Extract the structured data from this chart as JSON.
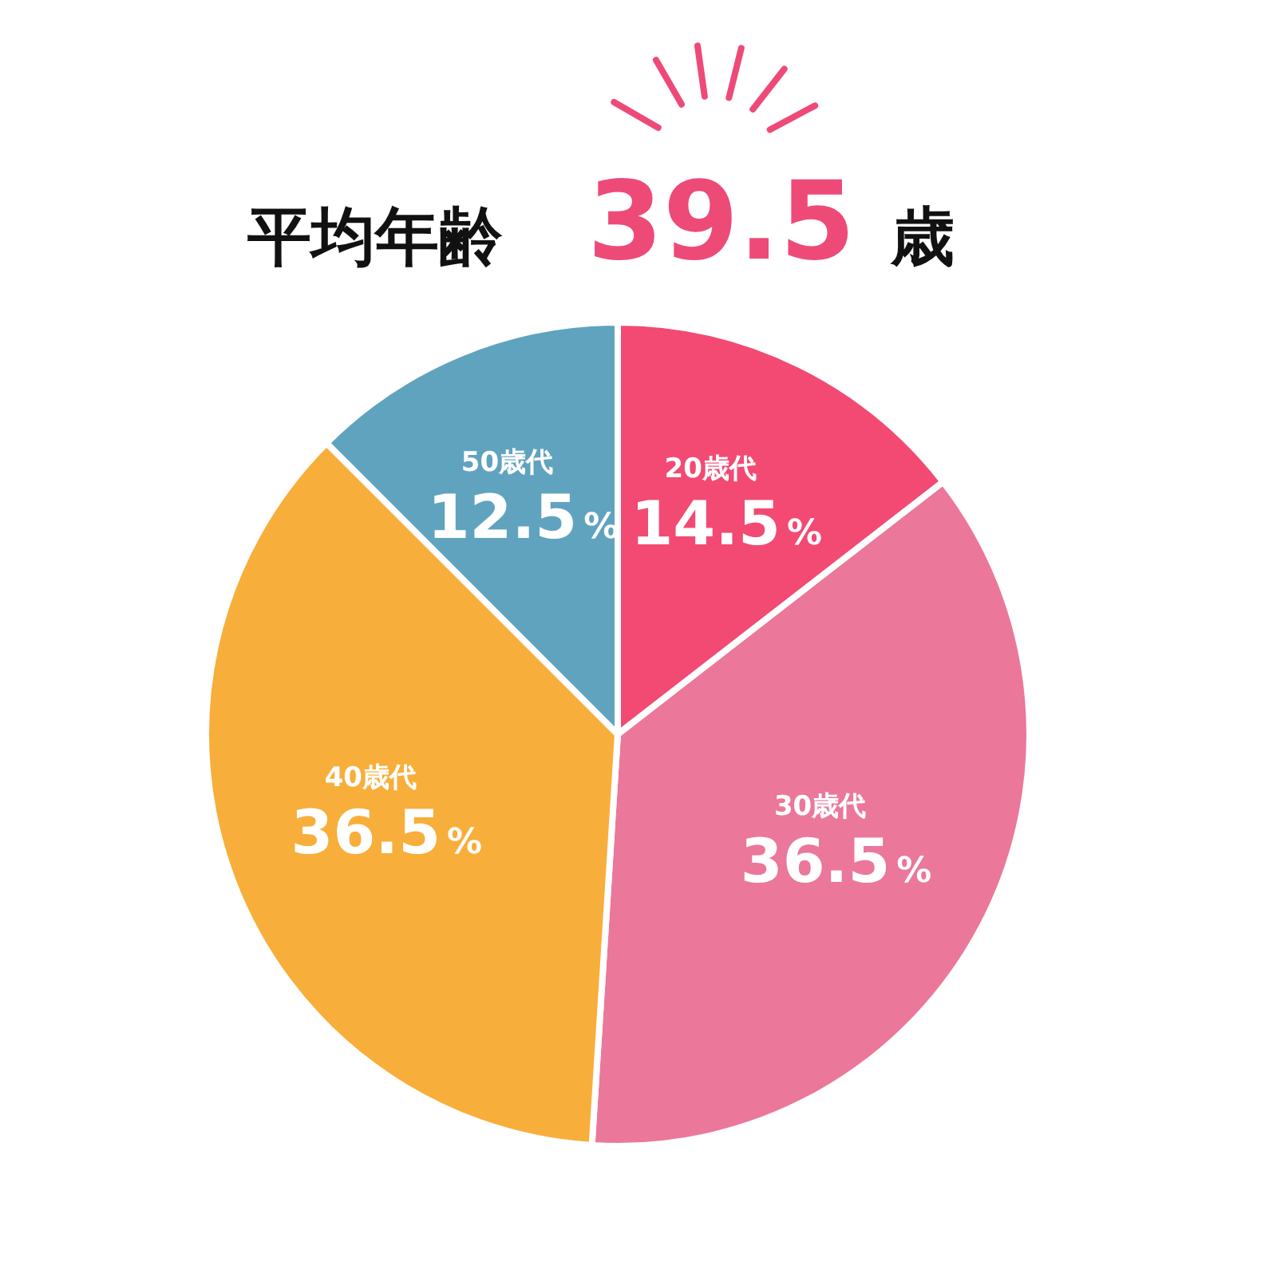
{
  "chart_data": {
    "type": "pie",
    "title": "平均年齢 39.5 歳",
    "categories": [
      "20歳代",
      "30歳代",
      "40歳代",
      "50歳代"
    ],
    "values": [
      14.5,
      36.5,
      36.5,
      12.5
    ],
    "colors": [
      "#f24a73",
      "#eb779b",
      "#f8ae3a",
      "#60a3bf"
    ],
    "value_labels": [
      "14.5%",
      "36.5%",
      "36.5%",
      "12.5%"
    ],
    "legend": false
  }
}
